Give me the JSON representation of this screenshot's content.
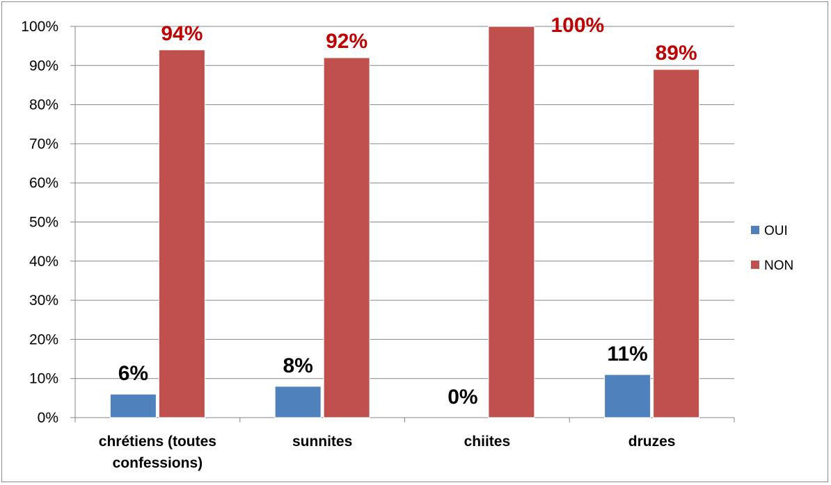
{
  "chart_data": {
    "type": "bar",
    "categories": [
      "chrétiens (toutes confessions)",
      "sunnites",
      "chiites",
      "druzes"
    ],
    "category_lines": [
      [
        "chrétiens (toutes",
        "confessions)"
      ],
      [
        "sunnites"
      ],
      [
        "chiites"
      ],
      [
        "druzes"
      ]
    ],
    "series": [
      {
        "name": "OUI",
        "values": [
          6,
          8,
          0,
          11
        ],
        "labels": [
          "6%",
          "8%",
          "0%",
          "11%"
        ],
        "color": "#4f81bd",
        "label_color": "#000000"
      },
      {
        "name": "NON",
        "values": [
          94,
          92,
          100,
          89
        ],
        "labels": [
          "94%",
          "92%",
          "100%",
          "89%"
        ],
        "color": "#c0504d",
        "label_color": "#c00000"
      }
    ],
    "ylim": [
      0,
      100
    ],
    "yticks": [
      0,
      10,
      20,
      30,
      40,
      50,
      60,
      70,
      80,
      90,
      100
    ],
    "ytick_labels": [
      "0%",
      "10%",
      "20%",
      "30%",
      "40%",
      "50%",
      "60%",
      "70%",
      "80%",
      "90%",
      "100%"
    ],
    "grid": true,
    "legend_position": "right",
    "title": "",
    "xlabel": "",
    "ylabel": ""
  }
}
